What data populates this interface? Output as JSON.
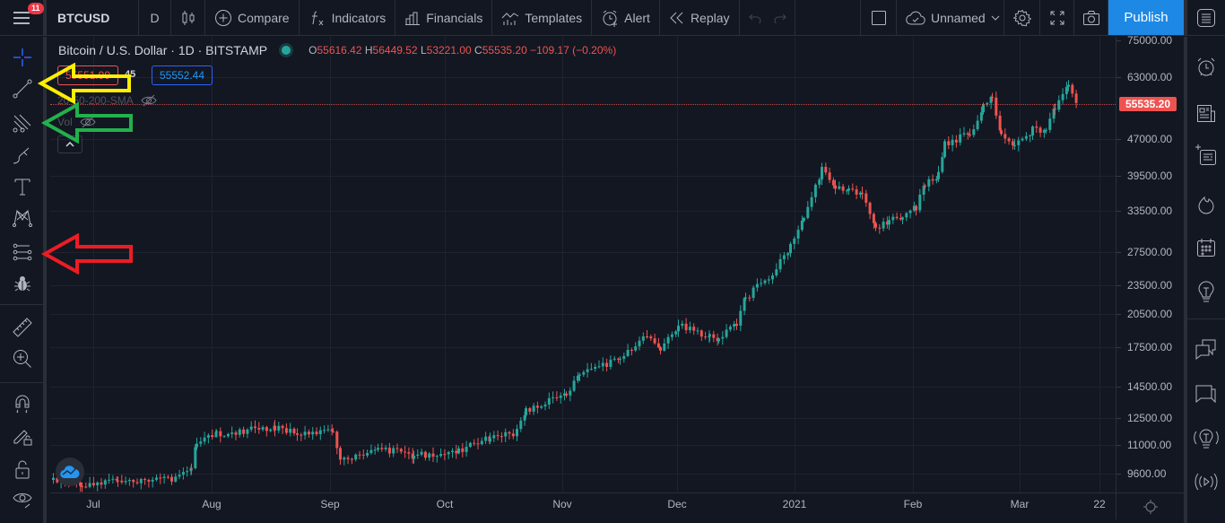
{
  "topbar": {
    "menu_badge": "11",
    "symbol": "BTCUSD",
    "interval": "D",
    "compare_label": "Compare",
    "indicators_label": "Indicators",
    "financials_label": "Financials",
    "templates_label": "Templates",
    "alert_label": "Alert",
    "replay_label": "Replay",
    "layout_name": "Unnamed",
    "publish_label": "Publish"
  },
  "legend": {
    "title": "Bitcoin / U.S. Dollar · 1D · BITSTAMP",
    "open_label": "O",
    "open": "55616.42",
    "high_label": "H",
    "high": "56449.52",
    "low_label": "L",
    "low": "53221.00",
    "close_label": "C",
    "close": "55535.20",
    "change": "−109.17 (−0.20%)",
    "sell_price": "55551.99",
    "spread": ".45",
    "buy_price": "55552.44",
    "indicator_1": "20-50-200-SMA",
    "indicator_2": "Vol"
  },
  "price_axis": {
    "labels": [
      "75000.00",
      "63000.00",
      "47000.00",
      "39500.00",
      "33500.00",
      "27500.00",
      "23500.00",
      "20500.00",
      "17500.00",
      "14500.00",
      "12500.00",
      "11000.00",
      "9600.00"
    ],
    "current_price": "55535.20"
  },
  "time_axis": {
    "labels": [
      "Jul",
      "Aug",
      "Sep",
      "Oct",
      "Nov",
      "Dec",
      "2021",
      "Feb",
      "Mar",
      "22"
    ]
  },
  "colors": {
    "background": "#131722",
    "up": "#26a69a",
    "down": "#ef5350",
    "accent": "#1e88e5",
    "annotation_yellow": "#ffef00",
    "annotation_green": "#22b14c",
    "annotation_red": "#ed1c24"
  },
  "left_toolbar": {
    "icons": [
      "crosshair-icon",
      "trend-line-icon",
      "pitchfork-icon",
      "brush-icon",
      "text-icon",
      "pattern-icon",
      "prediction-icon",
      "bug-icon",
      "ruler-icon",
      "zoom-in-icon",
      "magnet-icon",
      "lock-drawings-icon",
      "lock-icon",
      "eye-icon"
    ]
  },
  "right_sidebar": {
    "icons": [
      "watchlist-icon",
      "alarm-icon",
      "news-icon",
      "data-window-icon",
      "hotlist-icon",
      "calendar-icon",
      "ideas-icon",
      "chats-icon",
      "private-chat-icon",
      "ideas-stream-icon",
      "streams-icon"
    ]
  }
}
